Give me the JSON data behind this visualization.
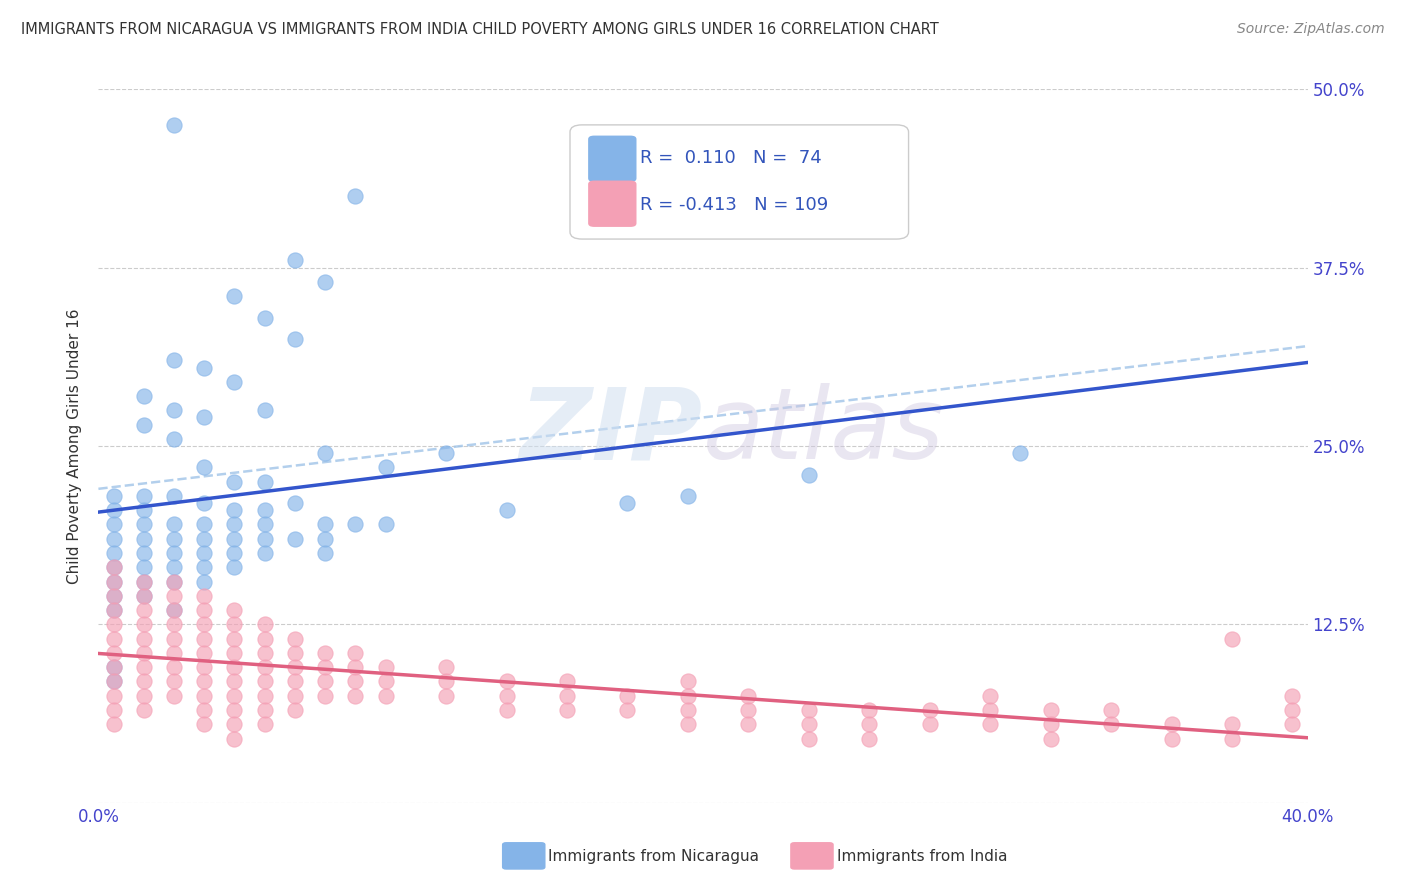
{
  "title": "IMMIGRANTS FROM NICARAGUA VS IMMIGRANTS FROM INDIA CHILD POVERTY AMONG GIRLS UNDER 16 CORRELATION CHART",
  "source": "Source: ZipAtlas.com",
  "ylabel": "Child Poverty Among Girls Under 16",
  "xlim": [
    0.0,
    0.4
  ],
  "ylim": [
    0.0,
    0.5
  ],
  "xticks": [
    0.0,
    0.05,
    0.1,
    0.15,
    0.2,
    0.25,
    0.3,
    0.35,
    0.4
  ],
  "xticklabels": [
    "0.0%",
    "",
    "",
    "",
    "",
    "",
    "",
    "",
    "40.0%"
  ],
  "yticks": [
    0.0,
    0.125,
    0.25,
    0.375,
    0.5
  ],
  "yticklabels": [
    "",
    "12.5%",
    "25.0%",
    "37.5%",
    "50.0%"
  ],
  "nicaragua_color": "#85b4e8",
  "india_color": "#f4a0b5",
  "nicaragua_R": 0.11,
  "nicaragua_N": 74,
  "india_R": -0.413,
  "india_N": 109,
  "nicaragua_points": [
    [
      0.025,
      0.475
    ],
    [
      0.085,
      0.425
    ],
    [
      0.065,
      0.38
    ],
    [
      0.075,
      0.365
    ],
    [
      0.045,
      0.355
    ],
    [
      0.055,
      0.34
    ],
    [
      0.065,
      0.325
    ],
    [
      0.025,
      0.31
    ],
    [
      0.035,
      0.305
    ],
    [
      0.045,
      0.295
    ],
    [
      0.015,
      0.285
    ],
    [
      0.025,
      0.275
    ],
    [
      0.055,
      0.275
    ],
    [
      0.035,
      0.27
    ],
    [
      0.015,
      0.265
    ],
    [
      0.025,
      0.255
    ],
    [
      0.075,
      0.245
    ],
    [
      0.115,
      0.245
    ],
    [
      0.095,
      0.235
    ],
    [
      0.035,
      0.235
    ],
    [
      0.045,
      0.225
    ],
    [
      0.055,
      0.225
    ],
    [
      0.005,
      0.215
    ],
    [
      0.015,
      0.215
    ],
    [
      0.025,
      0.215
    ],
    [
      0.035,
      0.21
    ],
    [
      0.065,
      0.21
    ],
    [
      0.175,
      0.21
    ],
    [
      0.005,
      0.205
    ],
    [
      0.015,
      0.205
    ],
    [
      0.045,
      0.205
    ],
    [
      0.055,
      0.205
    ],
    [
      0.135,
      0.205
    ],
    [
      0.005,
      0.195
    ],
    [
      0.015,
      0.195
    ],
    [
      0.025,
      0.195
    ],
    [
      0.035,
      0.195
    ],
    [
      0.045,
      0.195
    ],
    [
      0.055,
      0.195
    ],
    [
      0.075,
      0.195
    ],
    [
      0.085,
      0.195
    ],
    [
      0.095,
      0.195
    ],
    [
      0.005,
      0.185
    ],
    [
      0.015,
      0.185
    ],
    [
      0.025,
      0.185
    ],
    [
      0.035,
      0.185
    ],
    [
      0.045,
      0.185
    ],
    [
      0.055,
      0.185
    ],
    [
      0.065,
      0.185
    ],
    [
      0.075,
      0.185
    ],
    [
      0.005,
      0.175
    ],
    [
      0.015,
      0.175
    ],
    [
      0.025,
      0.175
    ],
    [
      0.035,
      0.175
    ],
    [
      0.045,
      0.175
    ],
    [
      0.055,
      0.175
    ],
    [
      0.075,
      0.175
    ],
    [
      0.005,
      0.165
    ],
    [
      0.015,
      0.165
    ],
    [
      0.025,
      0.165
    ],
    [
      0.035,
      0.165
    ],
    [
      0.045,
      0.165
    ],
    [
      0.005,
      0.155
    ],
    [
      0.015,
      0.155
    ],
    [
      0.025,
      0.155
    ],
    [
      0.035,
      0.155
    ],
    [
      0.005,
      0.145
    ],
    [
      0.015,
      0.145
    ],
    [
      0.005,
      0.135
    ],
    [
      0.025,
      0.135
    ],
    [
      0.005,
      0.095
    ],
    [
      0.005,
      0.085
    ],
    [
      0.235,
      0.23
    ],
    [
      0.305,
      0.245
    ],
    [
      0.195,
      0.215
    ]
  ],
  "india_points": [
    [
      0.005,
      0.165
    ],
    [
      0.005,
      0.155
    ],
    [
      0.005,
      0.145
    ],
    [
      0.005,
      0.135
    ],
    [
      0.005,
      0.125
    ],
    [
      0.005,
      0.115
    ],
    [
      0.005,
      0.105
    ],
    [
      0.005,
      0.095
    ],
    [
      0.005,
      0.085
    ],
    [
      0.005,
      0.075
    ],
    [
      0.005,
      0.065
    ],
    [
      0.005,
      0.055
    ],
    [
      0.015,
      0.155
    ],
    [
      0.015,
      0.145
    ],
    [
      0.015,
      0.135
    ],
    [
      0.015,
      0.125
    ],
    [
      0.015,
      0.115
    ],
    [
      0.015,
      0.105
    ],
    [
      0.015,
      0.095
    ],
    [
      0.015,
      0.085
    ],
    [
      0.015,
      0.075
    ],
    [
      0.015,
      0.065
    ],
    [
      0.025,
      0.155
    ],
    [
      0.025,
      0.145
    ],
    [
      0.025,
      0.135
    ],
    [
      0.025,
      0.125
    ],
    [
      0.025,
      0.115
    ],
    [
      0.025,
      0.105
    ],
    [
      0.025,
      0.095
    ],
    [
      0.025,
      0.085
    ],
    [
      0.025,
      0.075
    ],
    [
      0.035,
      0.145
    ],
    [
      0.035,
      0.135
    ],
    [
      0.035,
      0.125
    ],
    [
      0.035,
      0.115
    ],
    [
      0.035,
      0.105
    ],
    [
      0.035,
      0.095
    ],
    [
      0.035,
      0.085
    ],
    [
      0.035,
      0.075
    ],
    [
      0.035,
      0.065
    ],
    [
      0.035,
      0.055
    ],
    [
      0.045,
      0.135
    ],
    [
      0.045,
      0.125
    ],
    [
      0.045,
      0.115
    ],
    [
      0.045,
      0.105
    ],
    [
      0.045,
      0.095
    ],
    [
      0.045,
      0.085
    ],
    [
      0.045,
      0.075
    ],
    [
      0.045,
      0.065
    ],
    [
      0.045,
      0.055
    ],
    [
      0.045,
      0.045
    ],
    [
      0.055,
      0.125
    ],
    [
      0.055,
      0.115
    ],
    [
      0.055,
      0.105
    ],
    [
      0.055,
      0.095
    ],
    [
      0.055,
      0.085
    ],
    [
      0.055,
      0.075
    ],
    [
      0.055,
      0.065
    ],
    [
      0.055,
      0.055
    ],
    [
      0.065,
      0.115
    ],
    [
      0.065,
      0.105
    ],
    [
      0.065,
      0.095
    ],
    [
      0.065,
      0.085
    ],
    [
      0.065,
      0.075
    ],
    [
      0.065,
      0.065
    ],
    [
      0.075,
      0.105
    ],
    [
      0.075,
      0.095
    ],
    [
      0.075,
      0.085
    ],
    [
      0.075,
      0.075
    ],
    [
      0.085,
      0.105
    ],
    [
      0.085,
      0.095
    ],
    [
      0.085,
      0.085
    ],
    [
      0.085,
      0.075
    ],
    [
      0.095,
      0.095
    ],
    [
      0.095,
      0.085
    ],
    [
      0.095,
      0.075
    ],
    [
      0.115,
      0.095
    ],
    [
      0.115,
      0.085
    ],
    [
      0.115,
      0.075
    ],
    [
      0.135,
      0.085
    ],
    [
      0.135,
      0.075
    ],
    [
      0.135,
      0.065
    ],
    [
      0.155,
      0.085
    ],
    [
      0.155,
      0.075
    ],
    [
      0.155,
      0.065
    ],
    [
      0.175,
      0.075
    ],
    [
      0.175,
      0.065
    ],
    [
      0.195,
      0.085
    ],
    [
      0.195,
      0.075
    ],
    [
      0.195,
      0.065
    ],
    [
      0.195,
      0.055
    ],
    [
      0.215,
      0.075
    ],
    [
      0.215,
      0.065
    ],
    [
      0.215,
      0.055
    ],
    [
      0.235,
      0.065
    ],
    [
      0.235,
      0.055
    ],
    [
      0.235,
      0.045
    ],
    [
      0.255,
      0.065
    ],
    [
      0.255,
      0.055
    ],
    [
      0.255,
      0.045
    ],
    [
      0.275,
      0.065
    ],
    [
      0.275,
      0.055
    ],
    [
      0.295,
      0.075
    ],
    [
      0.295,
      0.065
    ],
    [
      0.295,
      0.055
    ],
    [
      0.315,
      0.065
    ],
    [
      0.315,
      0.055
    ],
    [
      0.315,
      0.045
    ],
    [
      0.335,
      0.065
    ],
    [
      0.335,
      0.055
    ],
    [
      0.355,
      0.055
    ],
    [
      0.355,
      0.045
    ],
    [
      0.375,
      0.115
    ],
    [
      0.375,
      0.055
    ],
    [
      0.375,
      0.045
    ],
    [
      0.395,
      0.075
    ],
    [
      0.395,
      0.065
    ],
    [
      0.395,
      0.055
    ]
  ]
}
